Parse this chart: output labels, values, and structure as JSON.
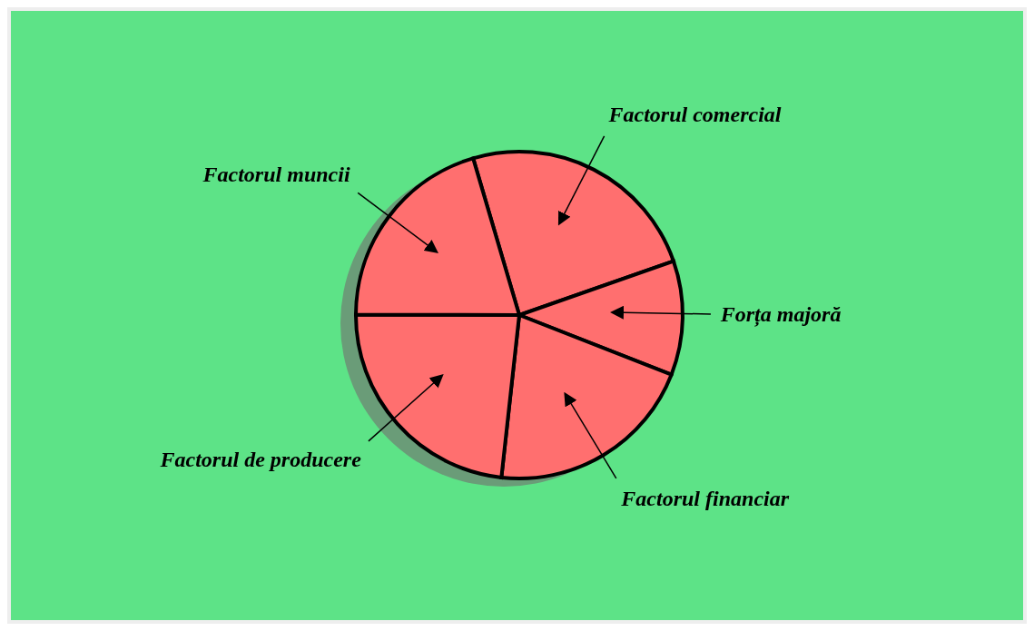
{
  "chart_data": {
    "type": "pie",
    "categories": [
      "Factorul comercial",
      "Forța majoră",
      "Factorul financiar",
      "Factorul de producere",
      "Factorul muncii"
    ],
    "values": [
      24.2,
      11.3,
      20.8,
      23.3,
      20.4
    ],
    "colors": [
      "#ff6f6f",
      "#ff6f6f",
      "#ff6f6f",
      "#ff6f6f",
      "#ff6f6f"
    ]
  }
}
